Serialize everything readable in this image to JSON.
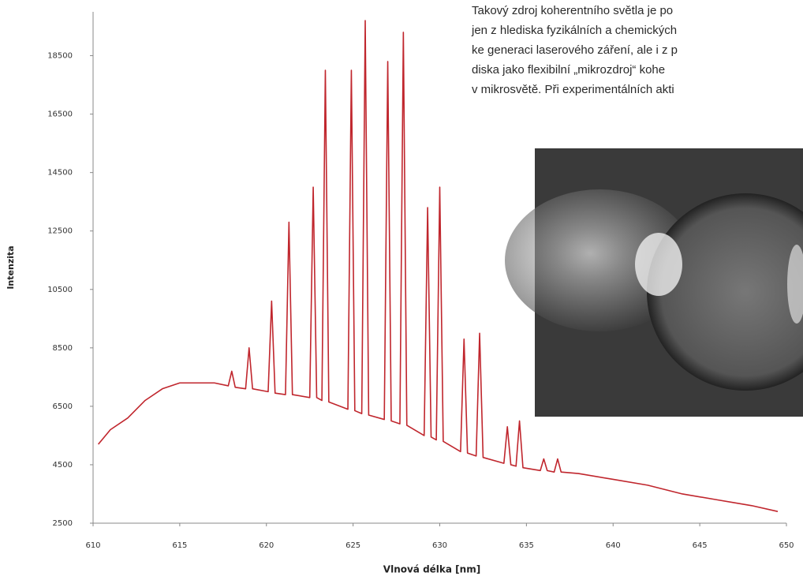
{
  "chart_data": {
    "type": "line",
    "x_label": "Vlnová délka [nm]",
    "y_label": "Intenzita",
    "xlim": [
      610,
      650
    ],
    "xticks": [
      610,
      615,
      620,
      625,
      630,
      635,
      640,
      645,
      650
    ],
    "ylim": [
      2500,
      20000
    ],
    "yticks": [
      2500,
      4500,
      6500,
      8500,
      10500,
      12500,
      14500,
      16500,
      18500
    ],
    "grid": false,
    "series": [
      {
        "color": "#c0262d",
        "x": [
          610.3,
          611,
          612,
          613,
          614,
          615,
          616,
          617,
          617.8,
          618.0,
          618.2,
          618.8,
          619.0,
          619.2,
          620.1,
          620.3,
          620.5,
          621.1,
          621.3,
          621.5,
          622.5,
          622.7,
          622.9,
          623.2,
          623.4,
          623.6,
          624.7,
          624.9,
          625.1,
          625.5,
          625.7,
          625.9,
          626.8,
          627.0,
          627.2,
          627.7,
          627.9,
          628.1,
          629.1,
          629.3,
          629.5,
          629.8,
          630.0,
          630.2,
          631.2,
          631.4,
          631.6,
          632.1,
          632.3,
          632.5,
          633.7,
          633.9,
          634.1,
          634.4,
          634.6,
          634.8,
          635.8,
          636.0,
          636.2,
          636.6,
          636.8,
          637.0,
          638,
          640,
          642,
          644,
          646,
          648,
          649.5
        ],
        "values": [
          5200,
          5700,
          6100,
          6700,
          7100,
          7300,
          7300,
          7300,
          7200,
          7700,
          7150,
          7100,
          8500,
          7100,
          7000,
          10100,
          6950,
          6900,
          12800,
          6900,
          6800,
          14000,
          6800,
          6700,
          18000,
          6650,
          6400,
          18000,
          6350,
          6250,
          19700,
          6200,
          6050,
          18300,
          6000,
          5900,
          19300,
          5850,
          5500,
          13300,
          5450,
          5350,
          14000,
          5300,
          4950,
          8800,
          4900,
          4800,
          9000,
          4750,
          4550,
          5800,
          4500,
          4450,
          6000,
          4400,
          4300,
          4700,
          4300,
          4250,
          4700,
          4250,
          4200,
          4000,
          3800,
          3500,
          3300,
          3100,
          2900
        ]
      }
    ]
  },
  "document": {
    "lines": [
      "Takový zdroj koherentního světla je po",
      "jen z hlediska fyzikálních a chemických",
      "ke generaci laserového záření, ale i z p",
      "diska jako flexibilní „mikrozdroj“ kohe",
      "v mikrosvětě. Při experimentálních akti"
    ]
  }
}
